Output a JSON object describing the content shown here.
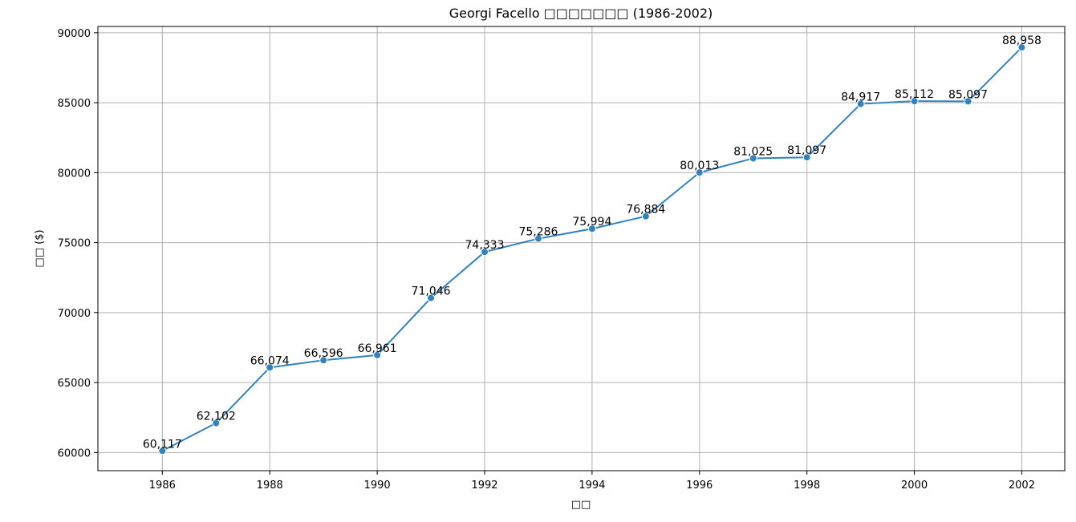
{
  "chart_data": {
    "type": "line",
    "title": "Georgi Facello □□□□□□□ (1986-2002)",
    "xlabel": "□□",
    "ylabel": "□□ ($)",
    "x": [
      1986,
      1987,
      1988,
      1989,
      1990,
      1991,
      1992,
      1993,
      1994,
      1995,
      1996,
      1997,
      1998,
      1999,
      2000,
      2001,
      2002
    ],
    "series": [
      {
        "values": [
          60117,
          62102,
          66074,
          66596,
          66961,
          71046,
          74333,
          75286,
          75994,
          76884,
          80013,
          81025,
          81097,
          84917,
          85112,
          85097,
          88958
        ],
        "labels": [
          "60,117",
          "62,102",
          "66,074",
          "66,596",
          "66,961",
          "71,046",
          "74,333",
          "75,286",
          "75,994",
          "76,884",
          "80,013",
          "81,025",
          "81,097",
          "84,917",
          "85,112",
          "85,097",
          "88,958"
        ],
        "color": "#3182bd"
      }
    ],
    "xlim": [
      1984.8,
      2002.8
    ],
    "ylim": [
      58700,
      90450
    ],
    "x_ticks": [
      1986,
      1988,
      1990,
      1992,
      1994,
      1996,
      1998,
      2000,
      2002
    ],
    "y_ticks": [
      60000,
      65000,
      70000,
      75000,
      80000,
      85000,
      90000
    ],
    "grid": true,
    "marker": "circle"
  }
}
